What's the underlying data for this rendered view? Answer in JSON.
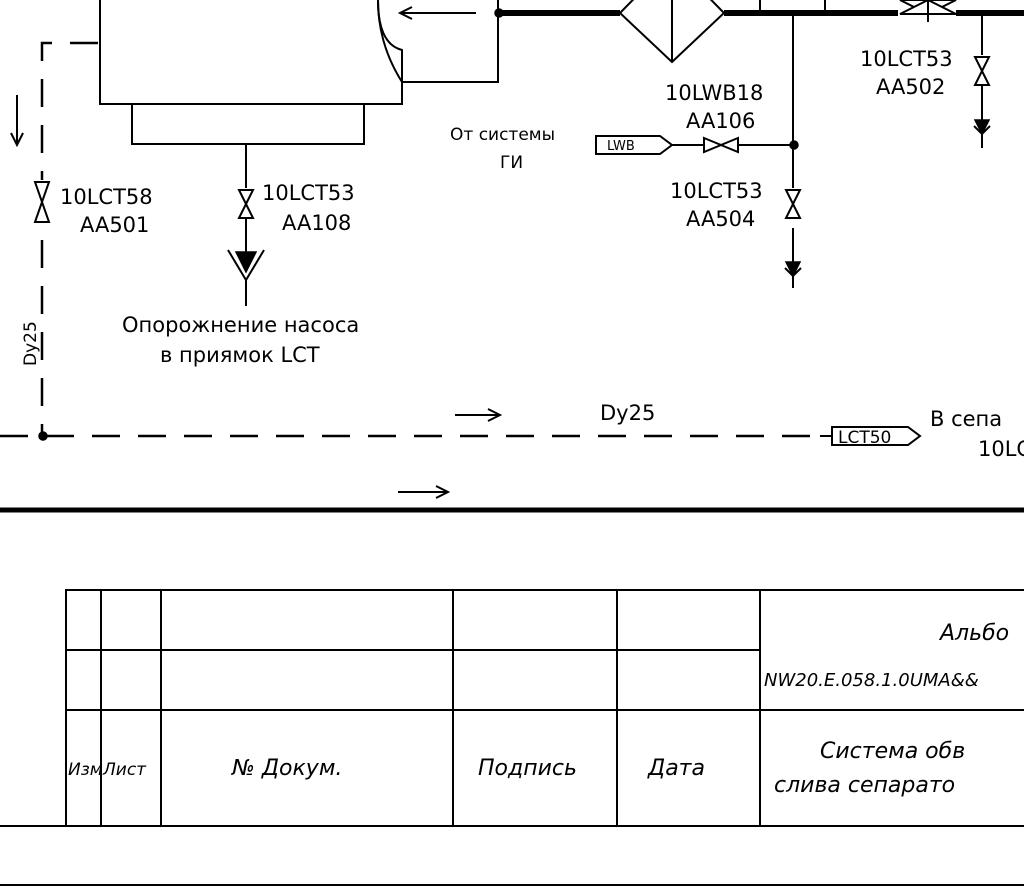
{
  "labels": {
    "valve_lct58": [
      "10LCT58",
      "AA501"
    ],
    "valve_lct53_108": [
      "10LCT53",
      "AA108"
    ],
    "drain_pump": [
      "Опорожнение насоса",
      "в приямок LCT"
    ],
    "from_system": [
      "От системы",
      "ГИ"
    ],
    "tag_lwb": "LWB",
    "valve_lwb18": [
      "10LWB18",
      "AA106"
    ],
    "valve_lct53_504": [
      "10LCT53",
      "AA504"
    ],
    "valve_lct53_502": [
      "10LCT53",
      "AA502"
    ],
    "dy25_vertical": "Dy25",
    "dy25_horizontal": "Dy25",
    "tag_lct50": "LCT50",
    "to_separator": [
      "В сепа",
      "10LC"
    ]
  },
  "title_block": {
    "columns": [
      "Изм",
      "Лист",
      "№ Докум.",
      "Подпись",
      "Дата"
    ],
    "album": "Альбо",
    "doc_code": "NW20.E.058.1.0UMA&&",
    "system_name": [
      "Система обв",
      "слива сепарато"
    ]
  }
}
